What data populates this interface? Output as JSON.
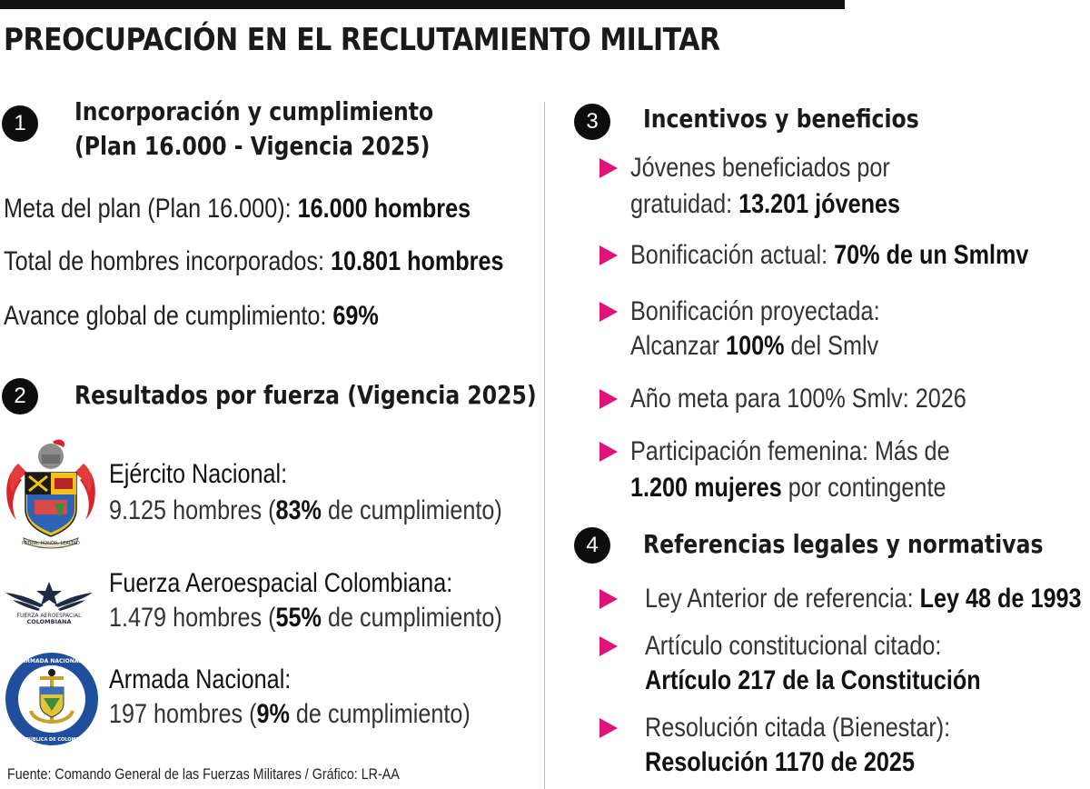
{
  "title": "PREOCUPACIÓN EN EL RECLUTAMIENTO MILITAR",
  "sections": {
    "s1": {
      "number": "1",
      "title_line1": "Incorporación y cumplimiento",
      "title_line2": "(Plan 16.000 - Vigencia 2025)",
      "items": [
        {
          "label": "Meta del plan (Plan 16.000): ",
          "value": "16.000 hombres"
        },
        {
          "label": "Total de hombres incorporados: ",
          "value": "10.801 hombres"
        },
        {
          "label": "Avance global de cumplimiento: ",
          "value": "69%"
        }
      ]
    },
    "s2": {
      "number": "2",
      "title": "Resultados por fuerza (Vigencia 2025)",
      "forces": [
        {
          "name": "Ejército Nacional:",
          "pre": "9.125 hombres (",
          "pct": "83%",
          "post": " de cumplimiento)",
          "logo_text": "PATRIA, HONOR, LEALTAD"
        },
        {
          "name": "Fuerza Aeroespacial Colombiana:",
          "pre": "1.479 hombres (",
          "pct": "55%",
          "post": " de cumplimiento)",
          "logo_text1": "FUERZA AEROESPACIAL",
          "logo_text2": "COLOMBIANA"
        },
        {
          "name": "Armada Nacional:",
          "pre": "197 hombres (",
          "pct": "9%",
          "post": " de cumplimiento)",
          "logo_text1": "ARMADA NACIONAL",
          "logo_text2": "REPÚBLICA DE COLOMBIA"
        }
      ]
    },
    "s3": {
      "number": "3",
      "title": "Incentivos y beneficios",
      "b1_line1": "Jóvenes beneficiados por",
      "b1_line2_pre": "gratuidad: ",
      "b1_line2_bold": "13.201 jóvenes",
      "b2_pre": "Bonificación actual: ",
      "b2_bold": "70% de un Smlmv",
      "b3_line1": "Bonificación proyectada:",
      "b3_line2_pre": "Alcanzar ",
      "b3_line2_bold": "100%",
      "b3_line2_post": " del Smlv",
      "b4": "Año meta para 100% Smlv: 2026",
      "b5_line1": "Participación femenina: Más de",
      "b5_line2_bold": "1.200 mujeres",
      "b5_line2_post": " por contingente"
    },
    "s4": {
      "number": "4",
      "title": "Referencias legales y normativas",
      "b1_pre": "Ley Anterior de referencia: ",
      "b1_bold": "Ley 48 de 1993",
      "b2_line1": "Artículo constitucional citado:",
      "b2_line2_bold": "Artículo 217 de la Constitución",
      "b3_line1": "Resolución citada (Bienestar):",
      "b3_line2_bold": "Resolución 1170 de 2025"
    }
  },
  "source": "Fuente: Comando General de las Fuerzas Militares / Gráfico: LR-AA",
  "colors": {
    "accent": "#e0137a",
    "text": "#1a1a1a",
    "circle": "#0d0d0d"
  }
}
